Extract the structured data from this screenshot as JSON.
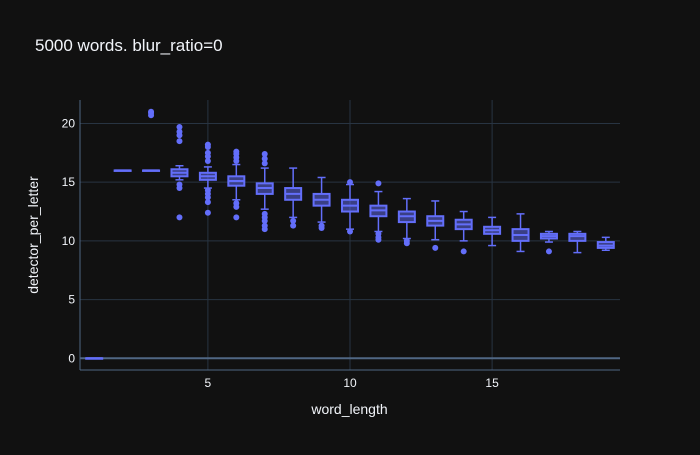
{
  "chart_data": {
    "type": "box",
    "title": "5000 words. blur_ratio=0",
    "xlabel": "word_length",
    "ylabel": "detector_per_letter",
    "xlim": [
      0.5,
      19.5
    ],
    "ylim": [
      -1,
      22
    ],
    "xticks": [
      5,
      10,
      15
    ],
    "yticks": [
      0,
      5,
      10,
      15,
      20
    ],
    "grid": true,
    "colors": {
      "background": "#111111",
      "plot_background": "#111111",
      "grid": "#283442",
      "box": "#636efa",
      "box_fill": "#636efa",
      "text": "#f2f5fa"
    },
    "boxes": [
      {
        "x": 1,
        "q1": 0,
        "median": 0,
        "q3": 0,
        "lower": 0,
        "upper": 0,
        "outliers": []
      },
      {
        "x": 2,
        "q1": 16,
        "median": 16,
        "q3": 16,
        "lower": 16,
        "upper": 16,
        "outliers": []
      },
      {
        "x": 3,
        "q1": 16,
        "median": 16,
        "q3": 16,
        "lower": 16,
        "upper": 16,
        "outliers": [
          20.7,
          20.9,
          21.0
        ]
      },
      {
        "x": 4,
        "q1": 15.5,
        "median": 15.8,
        "q3": 16.1,
        "lower": 15.2,
        "upper": 16.4,
        "outliers": [
          12.0,
          14.5,
          14.8,
          18.5,
          19.0,
          19.3,
          19.7
        ]
      },
      {
        "x": 5,
        "q1": 15.2,
        "median": 15.5,
        "q3": 15.8,
        "lower": 14.5,
        "upper": 16.3,
        "outliers": [
          12.4,
          13.3,
          13.7,
          14.0,
          14.3,
          16.8,
          17.2,
          17.5,
          18.0,
          18.2
        ]
      },
      {
        "x": 6,
        "q1": 14.7,
        "median": 15.1,
        "q3": 15.5,
        "lower": 13.5,
        "upper": 16.5,
        "outliers": [
          12.0,
          12.9,
          13.2,
          16.8,
          17.1,
          17.4,
          17.6
        ]
      },
      {
        "x": 7,
        "q1": 14.0,
        "median": 14.5,
        "q3": 14.9,
        "lower": 12.7,
        "upper": 16.2,
        "outliers": [
          11.0,
          11.3,
          11.7,
          12.0,
          12.3,
          16.6,
          17.0,
          17.4
        ]
      },
      {
        "x": 8,
        "q1": 13.5,
        "median": 14.0,
        "q3": 14.5,
        "lower": 12.0,
        "upper": 16.2,
        "outliers": [
          11.3,
          11.7
        ]
      },
      {
        "x": 9,
        "q1": 13.0,
        "median": 13.5,
        "q3": 14.0,
        "lower": 11.6,
        "upper": 15.4,
        "outliers": [
          11.1,
          11.3
        ]
      },
      {
        "x": 10,
        "q1": 12.5,
        "median": 13.0,
        "q3": 13.5,
        "lower": 11.0,
        "upper": 14.8,
        "outliers": [
          10.8,
          15.0
        ]
      },
      {
        "x": 11,
        "q1": 12.1,
        "median": 12.6,
        "q3": 13.0,
        "lower": 10.8,
        "upper": 14.2,
        "outliers": [
          10.1,
          10.3,
          10.6,
          14.9
        ]
      },
      {
        "x": 12,
        "q1": 11.6,
        "median": 12.1,
        "q3": 12.5,
        "lower": 10.2,
        "upper": 13.6,
        "outliers": [
          9.8,
          10.0
        ]
      },
      {
        "x": 13,
        "q1": 11.3,
        "median": 11.7,
        "q3": 12.1,
        "lower": 10.1,
        "upper": 13.4,
        "outliers": [
          9.4
        ]
      },
      {
        "x": 14,
        "q1": 11.0,
        "median": 11.4,
        "q3": 11.8,
        "lower": 10.0,
        "upper": 12.5,
        "outliers": [
          9.1
        ]
      },
      {
        "x": 15,
        "q1": 10.6,
        "median": 10.9,
        "q3": 11.2,
        "lower": 9.6,
        "upper": 12.0,
        "outliers": []
      },
      {
        "x": 16,
        "q1": 10.0,
        "median": 10.5,
        "q3": 11.0,
        "lower": 9.1,
        "upper": 12.3,
        "outliers": []
      },
      {
        "x": 17,
        "q1": 10.2,
        "median": 10.4,
        "q3": 10.6,
        "lower": 9.9,
        "upper": 10.8,
        "outliers": [
          9.1
        ]
      },
      {
        "x": 18,
        "q1": 10.0,
        "median": 10.4,
        "q3": 10.6,
        "lower": 9.0,
        "upper": 10.8,
        "outliers": []
      },
      {
        "x": 19,
        "q1": 9.4,
        "median": 9.6,
        "q3": 9.9,
        "lower": 9.2,
        "upper": 10.3,
        "outliers": []
      }
    ]
  }
}
